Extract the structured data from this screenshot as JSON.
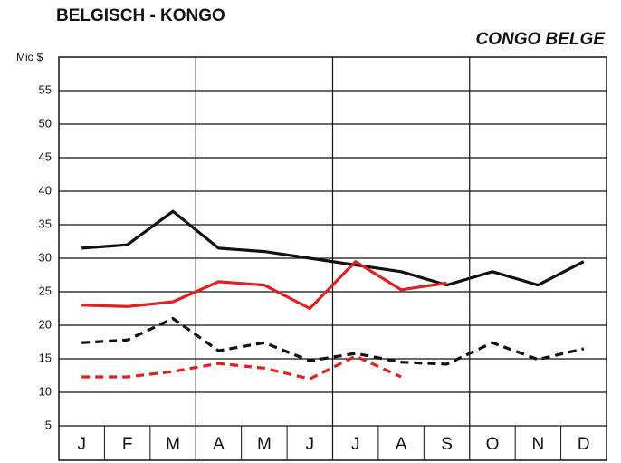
{
  "chart_data": {
    "type": "line",
    "title": "BELGISCH - KONGO",
    "subtitle": "CONGO BELGE",
    "y_label": "Mio $",
    "categories": [
      "J",
      "F",
      "M",
      "A",
      "M",
      "J",
      "J",
      "A",
      "S",
      "O",
      "N",
      "D"
    ],
    "series": [
      {
        "color": "#111111",
        "dash": false,
        "values": [
          31.5,
          32,
          37,
          31.5,
          31,
          30,
          29,
          28,
          26,
          28,
          26,
          29.5
        ]
      },
      {
        "color": "#e02020",
        "dash": false,
        "values": [
          23,
          22.8,
          23.5,
          26.5,
          26,
          22.5,
          29.5,
          25.3,
          26.3,
          null,
          null,
          null
        ]
      },
      {
        "color": "#111111",
        "dash": true,
        "values": [
          17.4,
          17.8,
          21,
          16.2,
          17.4,
          14.7,
          15.8,
          14.5,
          14.2,
          17.4,
          14.9,
          16.5
        ]
      },
      {
        "color": "#e02020",
        "dash": true,
        "values": [
          12.3,
          12.3,
          13.1,
          14.3,
          13.6,
          12,
          15.4,
          12.3,
          null,
          null,
          null,
          null
        ]
      }
    ],
    "ylim": [
      5,
      60
    ],
    "yticks": [
      5,
      10,
      15,
      20,
      25,
      30,
      35,
      40,
      45,
      50,
      55
    ],
    "grid": true
  }
}
